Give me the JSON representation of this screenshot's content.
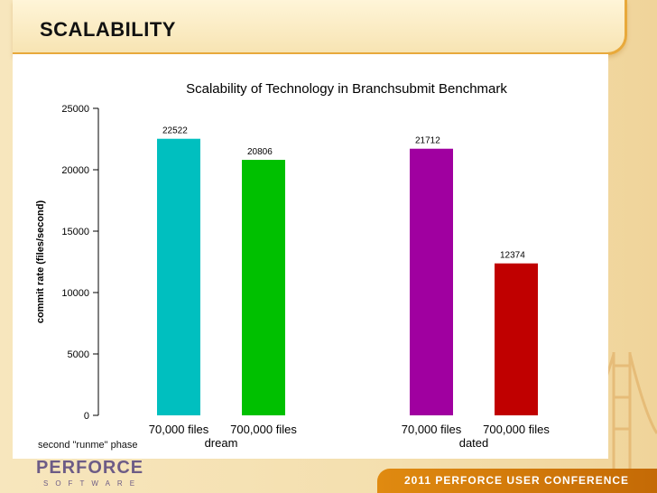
{
  "slide": {
    "title": "SCALABILITY",
    "phase_label": "second \"runme\" phase",
    "logo_main": "PERFORCE",
    "logo_sub": "SOFTWARE",
    "conference": "2011 PERFORCE USER CONFERENCE"
  },
  "colors": {
    "background": "#f6e3b5",
    "accent": "#e8a93b",
    "conference_bar": "#d57a0a",
    "logo": "#6d5c86"
  },
  "chart_data": {
    "type": "bar",
    "title": "Scalability of Technology in Branchsubmit Benchmark",
    "xlabel": "",
    "ylabel": "commit rate (files/second)",
    "ylim": [
      0,
      25000
    ],
    "yticks": [
      0,
      5000,
      10000,
      15000,
      20000,
      25000
    ],
    "grid": false,
    "groups": [
      {
        "name": "dream",
        "bars": [
          {
            "label": "70,000 files",
            "value": 22522,
            "color": "#00bfbf"
          },
          {
            "label": "700,000 files",
            "value": 20806,
            "color": "#00c000"
          }
        ]
      },
      {
        "name": "dated",
        "bars": [
          {
            "label": "70,000 files",
            "value": 21712,
            "color": "#a000a0"
          },
          {
            "label": "700,000 files",
            "value": 12374,
            "color": "#c00000"
          }
        ]
      }
    ]
  }
}
